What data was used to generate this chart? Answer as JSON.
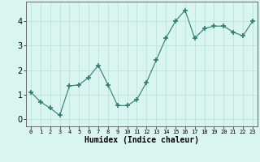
{
  "x": [
    0,
    1,
    2,
    3,
    4,
    5,
    6,
    7,
    8,
    9,
    10,
    11,
    12,
    13,
    14,
    15,
    16,
    17,
    18,
    19,
    20,
    21,
    22,
    23
  ],
  "y": [
    1.1,
    0.7,
    0.45,
    0.15,
    1.35,
    1.4,
    1.7,
    2.2,
    1.4,
    0.55,
    0.55,
    0.8,
    1.5,
    2.4,
    3.3,
    4.0,
    4.45,
    3.3,
    3.7,
    3.8,
    3.8,
    3.55,
    3.4,
    4.0
  ],
  "line_color": "#2e7d6e",
  "marker": "+",
  "marker_size": 4,
  "bg_color": "#d8f5f0",
  "grid_color": "#b8ddd6",
  "xlabel": "Humidex (Indice chaleur)",
  "xlim": [
    -0.5,
    23.5
  ],
  "ylim": [
    -0.3,
    4.8
  ],
  "yticks": [
    0,
    1,
    2,
    3,
    4
  ],
  "xticks": [
    0,
    1,
    2,
    3,
    4,
    5,
    6,
    7,
    8,
    9,
    10,
    11,
    12,
    13,
    14,
    15,
    16,
    17,
    18,
    19,
    20,
    21,
    22,
    23
  ],
  "xlabel_fontsize": 7,
  "ytick_fontsize": 7,
  "xtick_fontsize": 5
}
